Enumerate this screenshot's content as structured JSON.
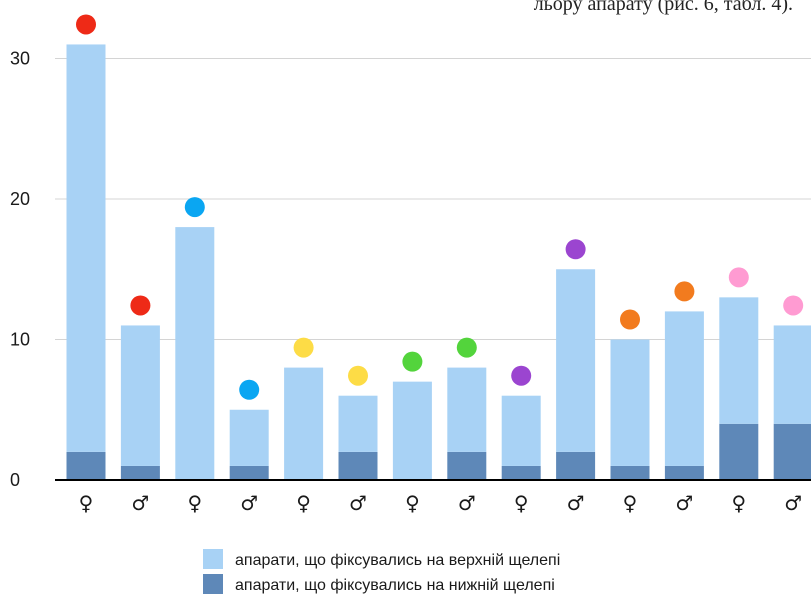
{
  "caption_fragment": "льору апарату (рис. 6, табл. 4).",
  "chart_data": {
    "type": "bar",
    "stacked": true,
    "ylim": [
      0,
      32
    ],
    "yticks": [
      0,
      10,
      20,
      30
    ],
    "grid": true,
    "legend_position": "bottom",
    "categories": [
      "♀",
      "♂",
      "♀",
      "♂",
      "♀",
      "♂",
      "♀",
      "♂",
      "♀",
      "♂",
      "♀",
      "♂",
      "♀",
      "♂"
    ],
    "series": [
      {
        "name": "апарати, що фіксувались на нижній щелепі",
        "color": "#5e88b8",
        "values": [
          2,
          1,
          0,
          1,
          0,
          2,
          0,
          2,
          1,
          2,
          1,
          1,
          4,
          4
        ]
      },
      {
        "name": "апарати, що фіксувались на верхній щелепі",
        "color": "#a8d2f5",
        "values": [
          29,
          10,
          18,
          4,
          8,
          4,
          7,
          6,
          5,
          13,
          9,
          11,
          9,
          7
        ]
      }
    ],
    "totals": [
      31,
      11,
      18,
      5,
      8,
      6,
      7,
      8,
      6,
      15,
      10,
      12,
      13,
      11
    ],
    "marker_colors": [
      "#ee2a17",
      "#ee2a17",
      "#0aa6f2",
      "#0aa6f2",
      "#fddc46",
      "#fddc46",
      "#53d43c",
      "#53d43c",
      "#9b45d0",
      "#9b45d0",
      "#f27b1e",
      "#f27b1e",
      "#ff9bd2",
      "#ff9bd2"
    ]
  },
  "legend": [
    {
      "label": "апарати, що фіксувались на верхній щелепі",
      "color": "#a8d2f5"
    },
    {
      "label": "апарати, що фіксувались на нижній щелепі",
      "color": "#5e88b8"
    }
  ]
}
